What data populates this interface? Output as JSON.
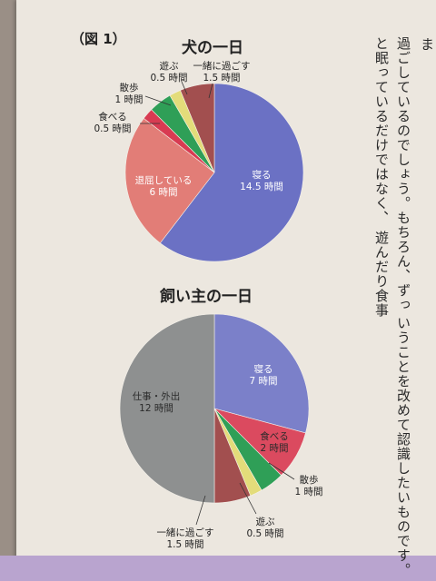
{
  "figure_label": "（図 1）",
  "side_text": {
    "col_a1": "過ごしているのでしょう。もちろん、ずっ",
    "col_a2": "と眠っているだけではなく、 遊んだり食事",
    "col_b1": "いうことを改めて認識したいものです。",
    "corner": "ま"
  },
  "chart_data": [
    {
      "type": "pie",
      "title": "犬の一日",
      "unit": "時間",
      "slices": [
        {
          "label": "寝る",
          "value": 14.5,
          "value_text": "14.5 時間",
          "color": "#6b71c4"
        },
        {
          "label": "退屈している",
          "value": 6,
          "value_text": "6 時間",
          "color": "#e27d77"
        },
        {
          "label": "食べる",
          "value": 0.5,
          "value_text": "0.5 時間",
          "color": "#d83b52"
        },
        {
          "label": "散歩",
          "value": 1,
          "value_text": "1 時間",
          "color": "#2f9f57"
        },
        {
          "label": "遊ぶ",
          "value": 0.5,
          "value_text": "0.5 時間",
          "color": "#e3dc7a"
        },
        {
          "label": "一緒に過ごす",
          "value": 1.5,
          "value_text": "1.5 時間",
          "color": "#a24f4f"
        }
      ]
    },
    {
      "type": "pie",
      "title": "飼い主の一日",
      "unit": "時間",
      "slices": [
        {
          "label": "寝る",
          "value": 7,
          "value_text": "7 時間",
          "color": "#7b80c9"
        },
        {
          "label": "食べる",
          "value": 2,
          "value_text": "2 時間",
          "color": "#db4a5f"
        },
        {
          "label": "散歩",
          "value": 1,
          "value_text": "1 時間",
          "color": "#2f9f57"
        },
        {
          "label": "遊ぶ",
          "value": 0.5,
          "value_text": "0.5 時間",
          "color": "#e3dc7a"
        },
        {
          "label": "一緒に過ごす",
          "value": 1.5,
          "value_text": "1.5 時間",
          "color": "#a24f4f"
        },
        {
          "label": "仕事・外出",
          "value": 12,
          "value_text": "12 時間",
          "color": "#8e9090"
        }
      ]
    }
  ]
}
